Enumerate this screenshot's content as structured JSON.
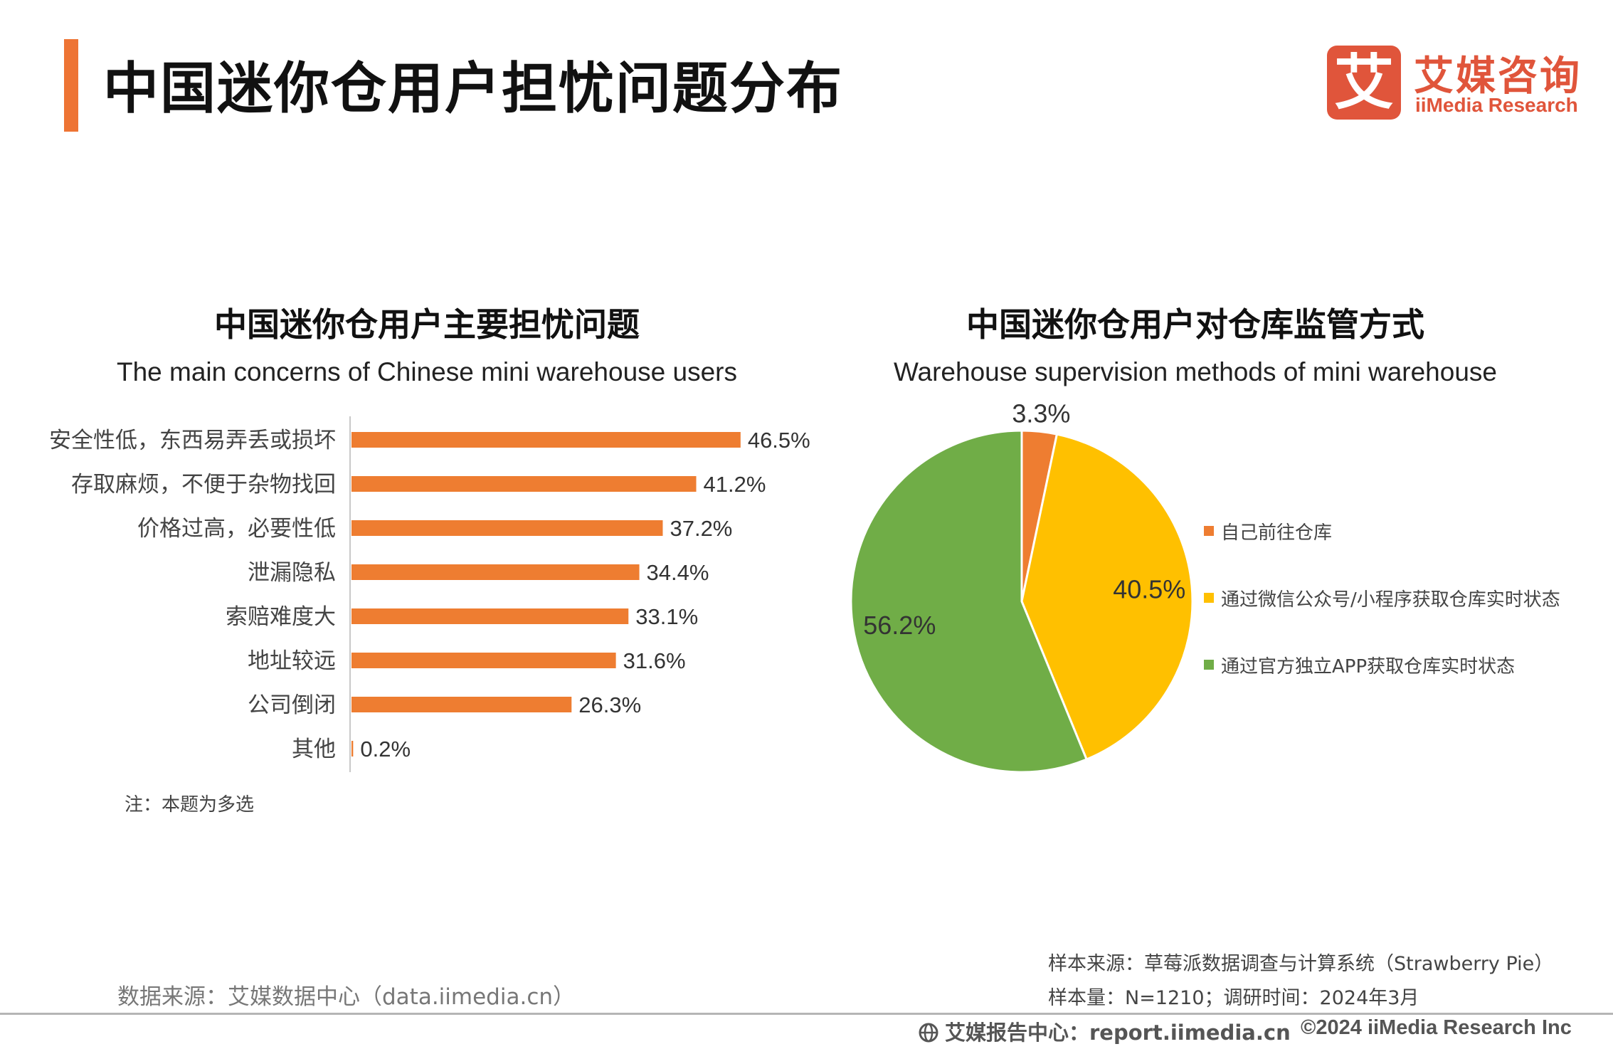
{
  "header": {
    "title": "中国迷你仓用户担忧问题分布",
    "logo_mark": "艾",
    "logo_cn": "艾媒咨询",
    "logo_en": "iiMedia Research"
  },
  "colors": {
    "accent": "#ee7434",
    "bar": "#ee7d31",
    "pie_self": "#ee7d31",
    "pie_wechat": "#ffc000",
    "pie_app": "#70ad47",
    "brand": "#e0553b"
  },
  "left_panel": {
    "title": "中国迷你仓用户主要担忧问题",
    "subtitle": "The main concerns of Chinese mini warehouse users",
    "note": "注：本题为多选"
  },
  "right_panel": {
    "title": "中国迷你仓用户对仓库监管方式",
    "subtitle": "Warehouse supervision methods of mini warehouse"
  },
  "chart_data": [
    {
      "type": "bar",
      "orientation": "horizontal",
      "categories": [
        "安全性低，东西易弄丢或损坏",
        "存取麻烦，不便于杂物找回",
        "价格过高，必要性低",
        "泄漏隐私",
        "索赔难度大",
        "地址较远",
        "公司倒闭",
        "其他"
      ],
      "values": [
        46.5,
        41.2,
        37.2,
        34.4,
        33.1,
        31.6,
        26.3,
        0.2
      ],
      "value_labels": [
        "46.5%",
        "41.2%",
        "37.2%",
        "34.4%",
        "33.1%",
        "31.6%",
        "26.3%",
        "0.2%"
      ],
      "unit": "%",
      "xlim": [
        0,
        50
      ],
      "grid": false
    },
    {
      "type": "pie",
      "categories": [
        "自己前往仓库",
        "通过微信公众号/小程序获取仓库实时状态",
        "通过官方独立APP获取仓库实时状态"
      ],
      "values": [
        3.3,
        40.5,
        56.2
      ],
      "value_labels": [
        "3.3%",
        "40.5%",
        "56.2%"
      ],
      "unit": "%",
      "legend_position": "right"
    }
  ],
  "footer": {
    "data_source": "数据来源：艾媒数据中心（data.iimedia.cn）",
    "sample_source": "样本来源：草莓派数据调查与计算系统（Strawberry Pie）",
    "sample_size": "样本量：N=1210；调研时间：2024年3月",
    "report_center": "艾媒报告中心：report.iimedia.cn",
    "copyright": "©2024  iiMedia Research  Inc"
  }
}
